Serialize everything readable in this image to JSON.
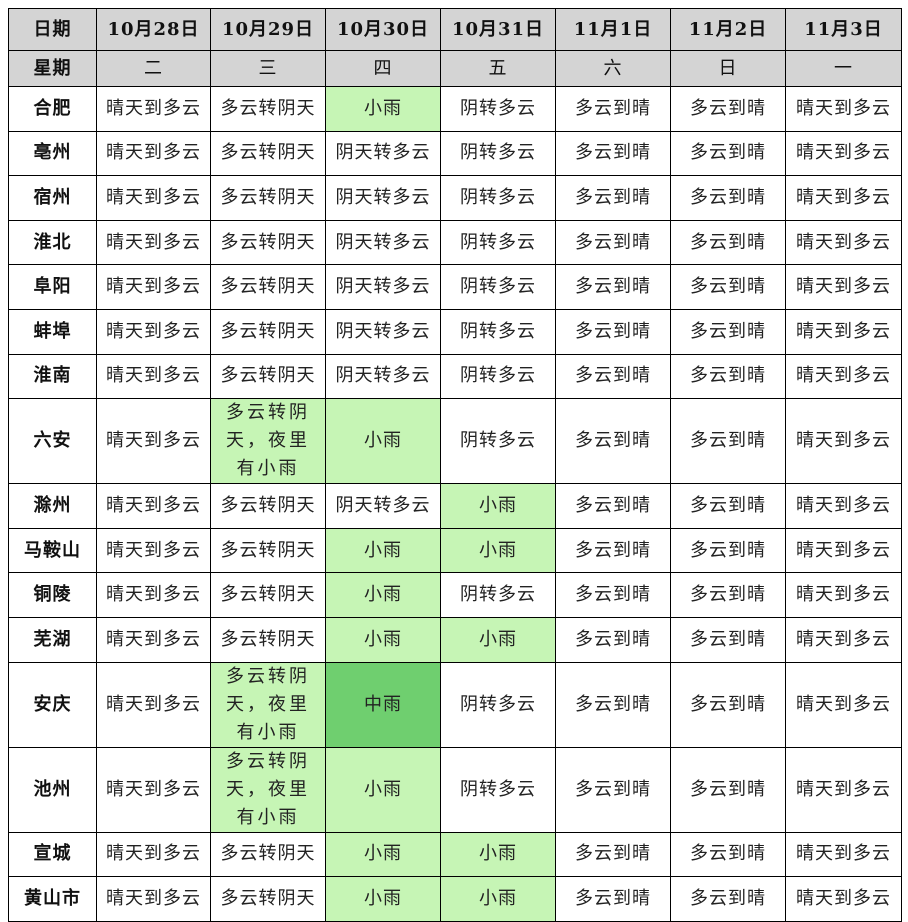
{
  "header": {
    "date_label": "日期",
    "dates": [
      "10月28日",
      "10月29日",
      "10月30日",
      "10月31日",
      "11月1日",
      "11月2日",
      "11月3日"
    ],
    "weekday_label": "星期",
    "weekdays": [
      "二",
      "三",
      "四",
      "五",
      "六",
      "日",
      "一"
    ]
  },
  "colors": {
    "header_bg": "#d4d4d4",
    "light_rain": "#c6f5b5",
    "moderate_rain": "#6fcf6f"
  },
  "rows": [
    {
      "city": "合肥",
      "cells": [
        {
          "text": "晴天到多云"
        },
        {
          "text": "多云转阴天"
        },
        {
          "text": "小雨",
          "level": "light"
        },
        {
          "text": "阴转多云"
        },
        {
          "text": "多云到晴"
        },
        {
          "text": "多云到晴"
        },
        {
          "text": "晴天到多云"
        }
      ]
    },
    {
      "city": "亳州",
      "cells": [
        {
          "text": "晴天到多云"
        },
        {
          "text": "多云转阴天"
        },
        {
          "text": "阴天转多云"
        },
        {
          "text": "阴转多云"
        },
        {
          "text": "多云到晴"
        },
        {
          "text": "多云到晴"
        },
        {
          "text": "晴天到多云"
        }
      ]
    },
    {
      "city": "宿州",
      "cells": [
        {
          "text": "晴天到多云"
        },
        {
          "text": "多云转阴天"
        },
        {
          "text": "阴天转多云"
        },
        {
          "text": "阴转多云"
        },
        {
          "text": "多云到晴"
        },
        {
          "text": "多云到晴"
        },
        {
          "text": "晴天到多云"
        }
      ]
    },
    {
      "city": "淮北",
      "cells": [
        {
          "text": "晴天到多云"
        },
        {
          "text": "多云转阴天"
        },
        {
          "text": "阴天转多云"
        },
        {
          "text": "阴转多云"
        },
        {
          "text": "多云到晴"
        },
        {
          "text": "多云到晴"
        },
        {
          "text": "晴天到多云"
        }
      ]
    },
    {
      "city": "阜阳",
      "cells": [
        {
          "text": "晴天到多云"
        },
        {
          "text": "多云转阴天"
        },
        {
          "text": "阴天转多云"
        },
        {
          "text": "阴转多云"
        },
        {
          "text": "多云到晴"
        },
        {
          "text": "多云到晴"
        },
        {
          "text": "晴天到多云"
        }
      ]
    },
    {
      "city": "蚌埠",
      "cells": [
        {
          "text": "晴天到多云"
        },
        {
          "text": "多云转阴天"
        },
        {
          "text": "阴天转多云"
        },
        {
          "text": "阴转多云"
        },
        {
          "text": "多云到晴"
        },
        {
          "text": "多云到晴"
        },
        {
          "text": "晴天到多云"
        }
      ]
    },
    {
      "city": "淮南",
      "cells": [
        {
          "text": "晴天到多云"
        },
        {
          "text": "多云转阴天"
        },
        {
          "text": "阴天转多云"
        },
        {
          "text": "阴转多云"
        },
        {
          "text": "多云到晴"
        },
        {
          "text": "多云到晴"
        },
        {
          "text": "晴天到多云"
        }
      ]
    },
    {
      "city": "六安",
      "cells": [
        {
          "text": "晴天到多云"
        },
        {
          "text": "多云转阴天，夜里有小雨",
          "level": "light"
        },
        {
          "text": "小雨",
          "level": "light"
        },
        {
          "text": "阴转多云"
        },
        {
          "text": "多云到晴"
        },
        {
          "text": "多云到晴"
        },
        {
          "text": "晴天到多云"
        }
      ]
    },
    {
      "city": "滁州",
      "cells": [
        {
          "text": "晴天到多云"
        },
        {
          "text": "多云转阴天"
        },
        {
          "text": "阴天转多云"
        },
        {
          "text": "小雨",
          "level": "light"
        },
        {
          "text": "多云到晴"
        },
        {
          "text": "多云到晴"
        },
        {
          "text": "晴天到多云"
        }
      ]
    },
    {
      "city": "马鞍山",
      "cells": [
        {
          "text": "晴天到多云"
        },
        {
          "text": "多云转阴天"
        },
        {
          "text": "小雨",
          "level": "light"
        },
        {
          "text": "小雨",
          "level": "light"
        },
        {
          "text": "多云到晴"
        },
        {
          "text": "多云到晴"
        },
        {
          "text": "晴天到多云"
        }
      ]
    },
    {
      "city": "铜陵",
      "cells": [
        {
          "text": "晴天到多云"
        },
        {
          "text": "多云转阴天"
        },
        {
          "text": "小雨",
          "level": "light"
        },
        {
          "text": "阴转多云"
        },
        {
          "text": "多云到晴"
        },
        {
          "text": "多云到晴"
        },
        {
          "text": "晴天到多云"
        }
      ]
    },
    {
      "city": "芜湖",
      "cells": [
        {
          "text": "晴天到多云"
        },
        {
          "text": "多云转阴天"
        },
        {
          "text": "小雨",
          "level": "light"
        },
        {
          "text": "小雨",
          "level": "light"
        },
        {
          "text": "多云到晴"
        },
        {
          "text": "多云到晴"
        },
        {
          "text": "晴天到多云"
        }
      ]
    },
    {
      "city": "安庆",
      "cells": [
        {
          "text": "晴天到多云"
        },
        {
          "text": "多云转阴天，夜里有小雨",
          "level": "light"
        },
        {
          "text": "中雨",
          "level": "dark"
        },
        {
          "text": "阴转多云"
        },
        {
          "text": "多云到晴"
        },
        {
          "text": "多云到晴"
        },
        {
          "text": "晴天到多云"
        }
      ]
    },
    {
      "city": "池州",
      "cells": [
        {
          "text": "晴天到多云"
        },
        {
          "text": "多云转阴天，夜里有小雨",
          "level": "light"
        },
        {
          "text": "小雨",
          "level": "light"
        },
        {
          "text": "阴转多云"
        },
        {
          "text": "多云到晴"
        },
        {
          "text": "多云到晴"
        },
        {
          "text": "晴天到多云"
        }
      ]
    },
    {
      "city": "宣城",
      "cells": [
        {
          "text": "晴天到多云"
        },
        {
          "text": "多云转阴天"
        },
        {
          "text": "小雨",
          "level": "light"
        },
        {
          "text": "小雨",
          "level": "light"
        },
        {
          "text": "多云到晴"
        },
        {
          "text": "多云到晴"
        },
        {
          "text": "晴天到多云"
        }
      ]
    },
    {
      "city": "黄山市",
      "cells": [
        {
          "text": "晴天到多云"
        },
        {
          "text": "多云转阴天"
        },
        {
          "text": "小雨",
          "level": "light"
        },
        {
          "text": "小雨",
          "level": "light"
        },
        {
          "text": "多云到晴"
        },
        {
          "text": "多云到晴"
        },
        {
          "text": "晴天到多云"
        }
      ]
    }
  ]
}
